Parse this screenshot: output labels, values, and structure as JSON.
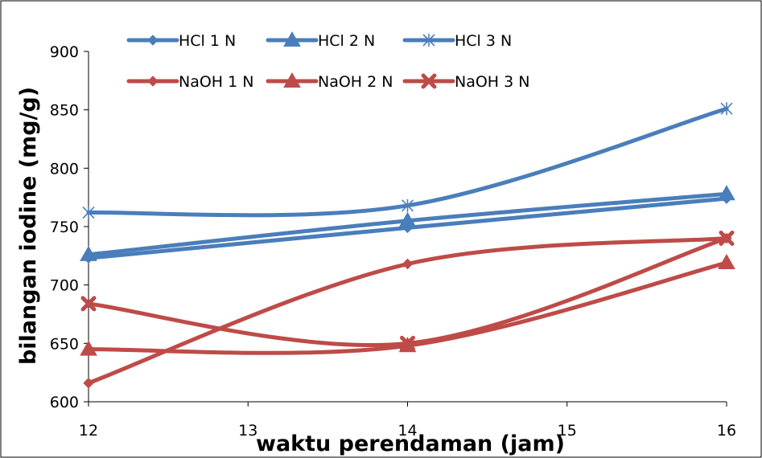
{
  "chart_data": {
    "type": "line",
    "xlabel": "waktu perendaman (jam)",
    "ylabel": "bilangan iodine (mg/g)",
    "xlim": [
      12,
      16
    ],
    "ylim": [
      600,
      900
    ],
    "x_ticks": [
      "12",
      "13",
      "14",
      "15",
      "16"
    ],
    "y_ticks": [
      "600",
      "650",
      "700",
      "750",
      "800",
      "850",
      "900"
    ],
    "grid": false,
    "legend_position": "top",
    "smooth": true,
    "x": [
      12,
      14,
      16
    ],
    "series": [
      {
        "name": "HCl 1 N",
        "values": [
          723,
          749,
          774
        ],
        "color": "#4a7ebb",
        "marker": "diamond"
      },
      {
        "name": "HCl 2 N",
        "values": [
          726,
          755,
          778
        ],
        "color": "#4a7ebb",
        "marker": "triangle"
      },
      {
        "name": "HCl 3 N",
        "values": [
          762,
          768,
          851
        ],
        "color": "#4a7ebb",
        "marker": "asterisk"
      },
      {
        "name": "NaOH 1 N",
        "values": [
          616,
          718,
          740
        ],
        "color": "#be4b48",
        "marker": "diamond"
      },
      {
        "name": "NaOH 2 N",
        "values": [
          645,
          648,
          719
        ],
        "color": "#be4b48",
        "marker": "triangle"
      },
      {
        "name": "NaOH 3 N",
        "values": [
          684,
          650,
          740
        ],
        "color": "#be4b48",
        "marker": "x"
      }
    ]
  }
}
